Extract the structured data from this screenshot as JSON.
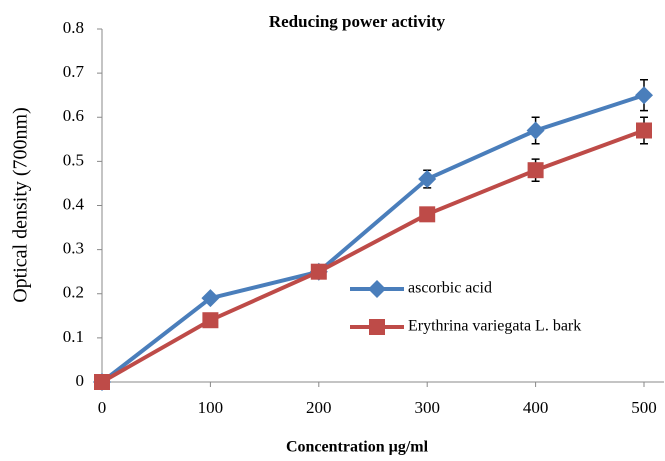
{
  "chart_data": {
    "type": "line",
    "title": "Reducing power  activity",
    "x_label": "Concentration µg/ml",
    "y_label": "Optical density  (700nm)",
    "x": [
      0,
      100,
      200,
      300,
      400,
      500
    ],
    "series": [
      {
        "name": "ascorbic acid",
        "color": "#4a7ebb",
        "marker": "diamond",
        "values": [
          0,
          0.19,
          0.25,
          0.46,
          0.57,
          0.65
        ],
        "errors": [
          null,
          null,
          null,
          0.02,
          0.03,
          0.035
        ]
      },
      {
        "name": "Erythrina variegata L. bark",
        "color": "#be4b48",
        "marker": "square",
        "values": [
          0,
          0.14,
          0.25,
          0.38,
          0.48,
          0.57
        ],
        "errors": [
          null,
          null,
          null,
          null,
          0.025,
          0.03
        ]
      }
    ],
    "xlim": [
      0,
      500
    ],
    "xticks": [
      0,
      100,
      200,
      300,
      400,
      500
    ],
    "ylim": [
      0,
      0.8
    ],
    "yticks": [
      0,
      0.1,
      0.2,
      0.3,
      0.4,
      0.5,
      0.6,
      0.7,
      0.8
    ],
    "grid": false
  }
}
